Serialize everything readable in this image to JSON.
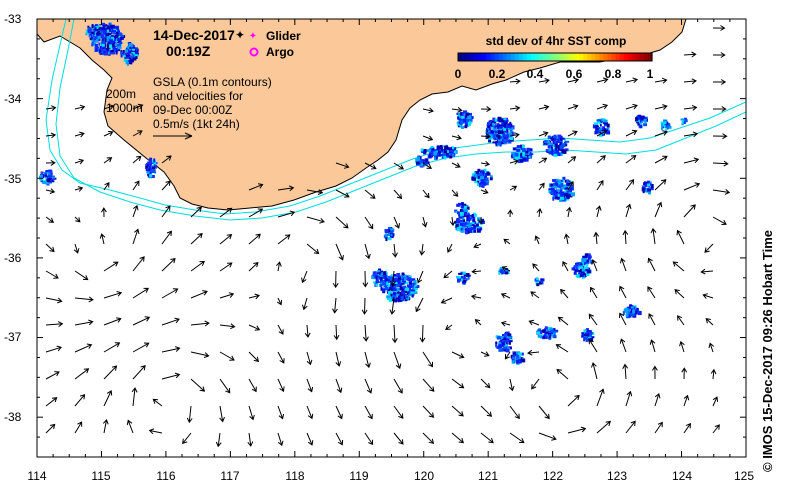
{
  "header": {
    "date": "14-Dec-2017",
    "time": "00:19Z"
  },
  "legend": {
    "glider_label": "Glider",
    "argo_label": "Argo",
    "glider_color": "#ff00ff",
    "argo_color": "#ff00ff"
  },
  "notes": {
    "depth_200": "200m",
    "depth_1000": "1000m",
    "gsla_line1": "GSLA (0.1m contours)",
    "gsla_line2": "and velocities for",
    "gsla_line3": "09-Dec 00:00Z",
    "scale_label": "0.5m/s (1kt 24h)"
  },
  "colorbar": {
    "title": "std dev of 4hr SST comp",
    "ticks": [
      "0",
      "0.2",
      "0.4",
      "0.6",
      "0.8",
      "1"
    ],
    "colors": [
      "#00007f",
      "#0000ff",
      "#0080ff",
      "#00ffff",
      "#80ff80",
      "#ffff00",
      "#ff8000",
      "#ff0000",
      "#7f0000"
    ]
  },
  "credit": "© IMOS 15-Dec-2017 09:26 Hobart Time",
  "colors": {
    "land": "#fbc89a",
    "coastline": "#000000",
    "isobath": "#00dede",
    "arrow": "#000000"
  },
  "map": {
    "lon_range": [
      114,
      125
    ],
    "lat_range": [
      -38.5,
      -33
    ],
    "x_ticks": [
      "114",
      "115",
      "116",
      "117",
      "118",
      "119",
      "120",
      "121",
      "122",
      "123",
      "124",
      "125"
    ],
    "y_ticks": [
      "-33",
      "-34",
      "-35",
      "-36",
      "-37",
      "-38"
    ]
  }
}
